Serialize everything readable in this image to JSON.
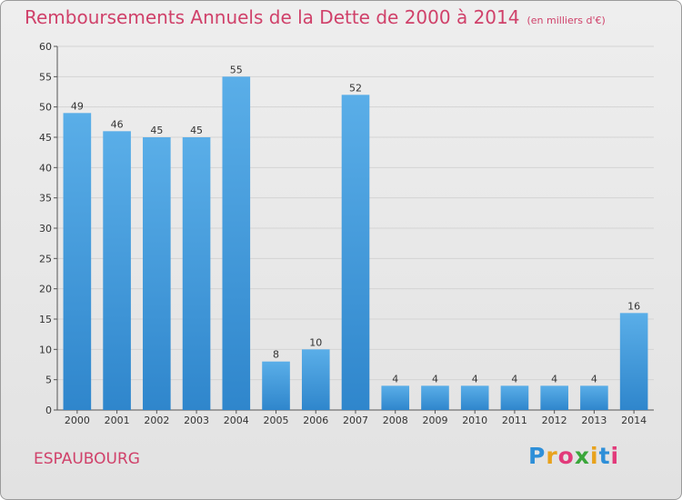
{
  "header": {
    "title": "Remboursements Annuels de la Dette de 2000 à 2014",
    "unit": "(en milliers d'€)"
  },
  "footer": {
    "location": "ESPAUBOURG",
    "logo": {
      "letters": [
        "P",
        "r",
        "o",
        "x",
        "i",
        "t",
        "i"
      ],
      "colors": [
        "#2e8fd8",
        "#e8a21c",
        "#e23a7a",
        "#3aa63a",
        "#e8a21c",
        "#2e8fd8",
        "#e23a7a"
      ]
    }
  },
  "colors": {
    "accent": "#d0416a",
    "bar": "#2f86cc",
    "bar_highlight": "#5aaee8"
  },
  "chart_data": {
    "type": "bar",
    "categories": [
      "2000",
      "2001",
      "2002",
      "2003",
      "2004",
      "2005",
      "2006",
      "2007",
      "2008",
      "2009",
      "2010",
      "2011",
      "2012",
      "2013",
      "2014"
    ],
    "values": [
      49,
      46,
      45,
      45,
      55,
      8,
      10,
      52,
      4,
      4,
      4,
      4,
      4,
      4,
      16
    ],
    "ylim": [
      0,
      60
    ],
    "yticks": [
      0,
      5,
      10,
      15,
      20,
      25,
      30,
      35,
      40,
      45,
      50,
      55,
      60
    ],
    "grid": true
  }
}
